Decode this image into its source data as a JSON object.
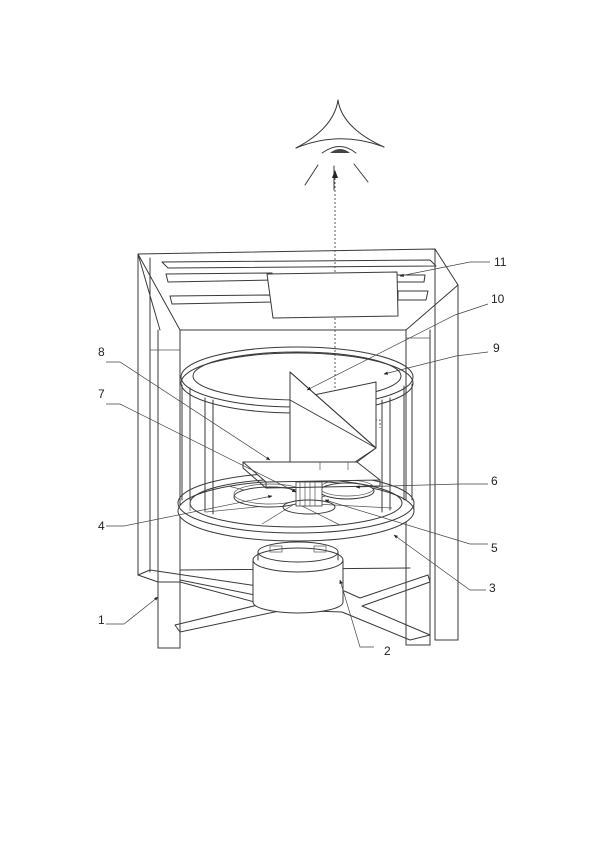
{
  "figure": {
    "callouts": [
      {
        "id": "1",
        "label": "1"
      },
      {
        "id": "2",
        "label": "2"
      },
      {
        "id": "3",
        "label": "3"
      },
      {
        "id": "4",
        "label": "4"
      },
      {
        "id": "5",
        "label": "5"
      },
      {
        "id": "6",
        "label": "6"
      },
      {
        "id": "7",
        "label": "7"
      },
      {
        "id": "8",
        "label": "8"
      },
      {
        "id": "9",
        "label": "9"
      },
      {
        "id": "10",
        "label": "10"
      },
      {
        "id": "11",
        "label": "11"
      }
    ]
  }
}
